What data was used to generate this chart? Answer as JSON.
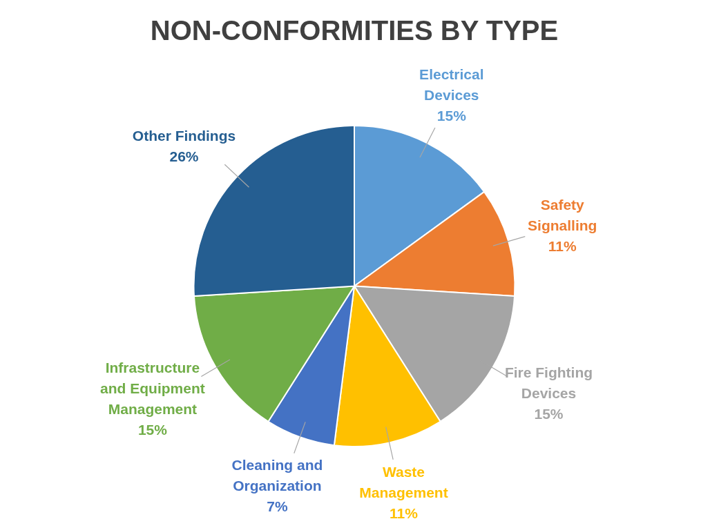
{
  "chart_data": {
    "type": "pie",
    "title": "NON-CONFORMITIES BY TYPE",
    "categories": [
      "Electrical Devices",
      "Safety Signalling",
      "Fire Fighting Devices",
      "Waste Management",
      "Cleaning and Organization",
      "Infrastructure and Equipment Management",
      "Other Findings"
    ],
    "values": [
      15,
      11,
      15,
      11,
      7,
      15,
      26
    ],
    "value_labels": [
      "15%",
      "11%",
      "15%",
      "11%",
      "7%",
      "15%",
      "26%"
    ],
    "colors": [
      "#5b9bd5",
      "#ed7d31",
      "#a5a5a5",
      "#ffc000",
      "#4472c4",
      "#70ad47",
      "#255e91"
    ],
    "legend": false
  }
}
